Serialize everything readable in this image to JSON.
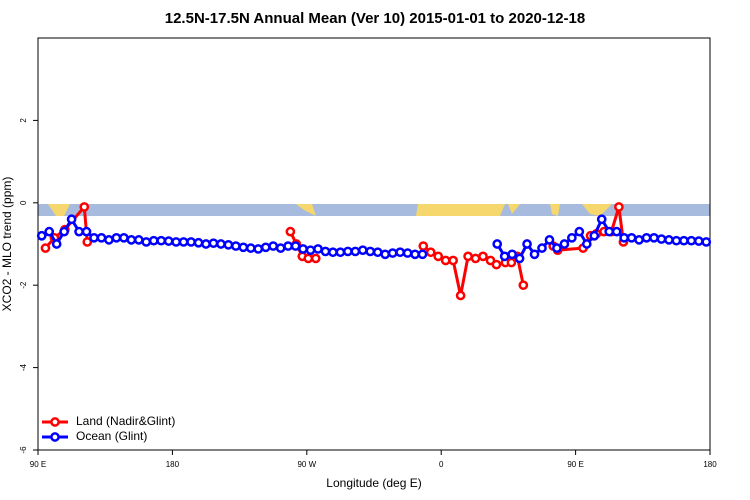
{
  "chart_data": {
    "type": "line",
    "title": "12.5N-17.5N Annual Mean (Ver 10)   2015-01-01 to 2020-12-18",
    "x_label": "Longitude (deg E)",
    "y_label": "XCO2 - MLO trend (ppm)",
    "xlim": [
      90,
      540
    ],
    "xticks": [
      {
        "value": 90,
        "label": "90 E"
      },
      {
        "value": 180,
        "label": "180"
      },
      {
        "value": 270,
        "label": "90 W"
      },
      {
        "value": 360,
        "label": "0"
      },
      {
        "value": 450,
        "label": "90 E"
      },
      {
        "value": 540,
        "label": "180"
      }
    ],
    "ylim": [
      -6,
      4
    ],
    "yticks": [
      -6,
      -4,
      -2,
      0,
      2
    ],
    "legend": "bottom-left",
    "series": [
      {
        "name": "Land (Nadir&Glint)",
        "color": "#ff0000",
        "x": [
          95,
          101,
          108,
          121,
          123,
          190,
          259,
          263,
          267,
          271,
          276,
          310,
          348,
          353,
          358,
          363,
          368,
          373,
          378,
          383,
          388,
          393,
          397,
          403,
          407,
          411,
          415,
          425,
          435,
          438,
          455,
          460,
          464,
          469,
          474,
          479,
          482
        ],
        "values": [
          -1.1,
          -0.85,
          -0.65,
          -0.1,
          -0.95,
          null,
          -0.7,
          -1.0,
          -1.3,
          -1.35,
          -1.35,
          null,
          -1.05,
          -1.2,
          -1.3,
          -1.4,
          -1.4,
          -2.25,
          -1.3,
          -1.35,
          -1.3,
          -1.4,
          -1.5,
          -1.45,
          -1.45,
          -1.3,
          -2.0,
          null,
          -1.05,
          -1.15,
          -1.1,
          -0.8,
          -0.75,
          -0.7,
          -0.7,
          -0.1,
          -0.95
        ]
      },
      {
        "name": "Ocean (Glint)",
        "color": "#0000ff",
        "x": [
          92.5,
          97.5,
          102.5,
          107.5,
          112.5,
          117.5,
          122.5,
          127.5,
          132.5,
          137.5,
          142.5,
          147.5,
          152.5,
          157.5,
          162.5,
          167.5,
          172.5,
          177.5,
          182.5,
          187.5,
          192.5,
          197.5,
          202.5,
          207.5,
          212.5,
          217.5,
          222.5,
          227.5,
          232.5,
          237.5,
          242.5,
          247.5,
          252.5,
          257.5,
          262.5,
          267.5,
          272.5,
          277.5,
          282.5,
          287.5,
          292.5,
          297.5,
          302.5,
          307.5,
          312.5,
          317.5,
          322.5,
          327.5,
          332.5,
          337.5,
          342.5,
          347.5,
          370,
          397.5,
          402.5,
          407.5,
          412.5,
          417.5,
          422.5,
          427.5,
          432.5,
          437.5,
          442.5,
          447.5,
          452.5,
          457.5,
          462.5,
          467.5,
          472.5,
          477.5,
          482.5,
          487.5,
          492.5,
          497.5,
          502.5,
          507.5,
          512.5,
          517.5,
          522.5,
          527.5,
          532.5,
          537.5
        ],
        "values": [
          -0.8,
          -0.7,
          -1.0,
          -0.7,
          -0.4,
          -0.7,
          -0.7,
          -0.85,
          -0.85,
          -0.9,
          -0.85,
          -0.85,
          -0.9,
          -0.9,
          -0.95,
          -0.92,
          -0.92,
          -0.93,
          -0.95,
          -0.95,
          -0.95,
          -0.97,
          -1.0,
          -0.98,
          -1.0,
          -1.02,
          -1.05,
          -1.08,
          -1.1,
          -1.12,
          -1.08,
          -1.05,
          -1.1,
          -1.05,
          -1.05,
          -1.12,
          -1.15,
          -1.12,
          -1.18,
          -1.2,
          -1.2,
          -1.18,
          -1.18,
          -1.15,
          -1.18,
          -1.2,
          -1.25,
          -1.22,
          -1.2,
          -1.22,
          -1.25,
          -1.25,
          null,
          -1.0,
          -1.3,
          -1.25,
          -1.35,
          -1.0,
          -1.25,
          -1.1,
          -0.9,
          -1.1,
          -1.0,
          -0.85,
          -0.7,
          -1.0,
          -0.8,
          -0.4,
          -0.7,
          -0.7,
          -0.85,
          -0.85,
          -0.9,
          -0.85,
          -0.85,
          -0.88,
          -0.9,
          -0.92,
          -0.92,
          -0.92,
          -0.93,
          -0.95
        ]
      }
    ]
  }
}
